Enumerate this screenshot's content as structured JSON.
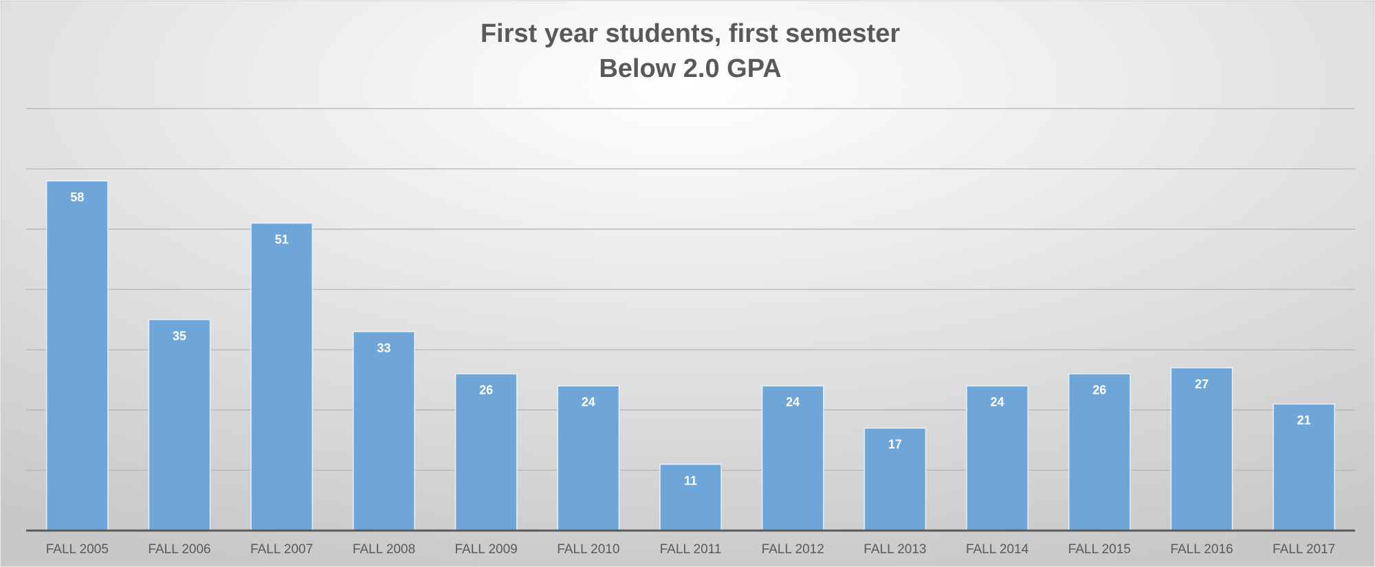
{
  "chart_data": {
    "type": "bar",
    "title": [
      "First year students, first semester",
      "Below 2.0 GPA"
    ],
    "categories": [
      "FALL 2005",
      "FALL 2006",
      "FALL 2007",
      "FALL 2008",
      "FALL 2009",
      "FALL 2010",
      "FALL 2011",
      "FALL 2012",
      "FALL 2013",
      "FALL 2014",
      "FALL 2015",
      "FALL 2016",
      "FALL 2017"
    ],
    "values": [
      58,
      35,
      51,
      33,
      26,
      24,
      11,
      24,
      17,
      24,
      26,
      27,
      21
    ],
    "color": "#6fa6d9",
    "ylim": [
      0,
      70
    ],
    "yticks": [
      0,
      10,
      20,
      30,
      40,
      50,
      60,
      70
    ],
    "grid": true
  }
}
